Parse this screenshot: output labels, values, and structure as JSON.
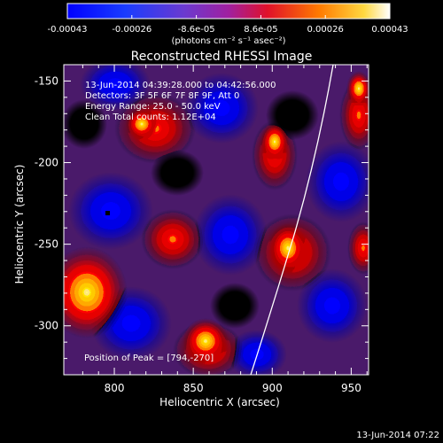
{
  "colorbar": {
    "tick_labels": [
      "-0.00043",
      "-0.00026",
      "-8.6e-05",
      "8.6e-05",
      "0.00026",
      "0.00043"
    ],
    "units_label": "(photons cm⁻² s⁻¹ asec⁻²)"
  },
  "image": {
    "title": "Reconstructed RHESSI Image",
    "info_lines": [
      "13-Jun-2014 04:39:28.000 to 04:42:56.000",
      "Detectors: 3F 5F 6F 7F 8F 9F, Att 0",
      "Energy Range: 25.0 - 50.0 keV",
      "Clean     Total counts: 1.12E+04"
    ],
    "peak_label": "Position of Peak = [794,-270]",
    "x_axis_label": "Heliocentric X (arcsec)",
    "y_axis_label": "Heliocentric Y (arcsec)",
    "x_tick_labels": [
      "800",
      "850",
      "900",
      "950"
    ],
    "y_tick_labels": [
      "-150",
      "-200",
      "-250",
      "-300"
    ],
    "footer_timestamp": "13-Jun-2014 07:22"
  },
  "colors": {
    "background": "#000000",
    "text": "#ffffff",
    "limb": "#ffffff"
  }
}
